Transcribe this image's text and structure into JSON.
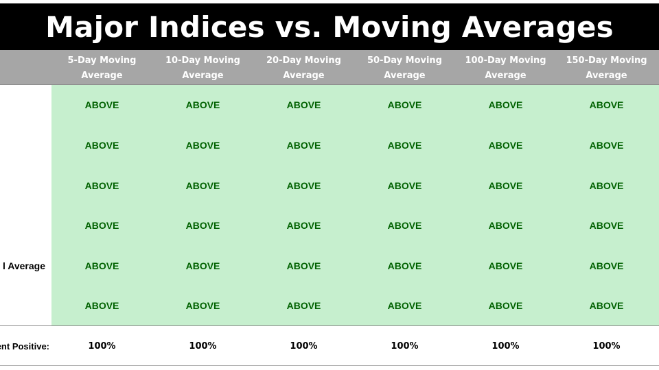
{
  "title": "Major Indices vs. Moving Averages",
  "columns": [
    {
      "line1": "5-Day Moving",
      "line2": "Average"
    },
    {
      "line1": "10-Day Moving",
      "line2": "Average"
    },
    {
      "line1": "20-Day Moving",
      "line2": "Average"
    },
    {
      "line1": "50-Day Moving",
      "line2": "Average"
    },
    {
      "line1": "100-Day Moving",
      "line2": "Average"
    },
    {
      "line1": "150-Day Moving",
      "line2": "Average"
    }
  ],
  "rows": [
    {
      "label": "",
      "cells": [
        "ABOVE",
        "ABOVE",
        "ABOVE",
        "ABOVE",
        "ABOVE",
        "ABOVE"
      ]
    },
    {
      "label": "",
      "cells": [
        "ABOVE",
        "ABOVE",
        "ABOVE",
        "ABOVE",
        "ABOVE",
        "ABOVE"
      ]
    },
    {
      "label": "",
      "cells": [
        "ABOVE",
        "ABOVE",
        "ABOVE",
        "ABOVE",
        "ABOVE",
        "ABOVE"
      ]
    },
    {
      "label": "",
      "cells": [
        "ABOVE",
        "ABOVE",
        "ABOVE",
        "ABOVE",
        "ABOVE",
        "ABOVE"
      ]
    },
    {
      "label": "l Average",
      "cells": [
        "ABOVE",
        "ABOVE",
        "ABOVE",
        "ABOVE",
        "ABOVE",
        "ABOVE"
      ]
    },
    {
      "label": "",
      "cells": [
        "ABOVE",
        "ABOVE",
        "ABOVE",
        "ABOVE",
        "ABOVE",
        "ABOVE"
      ]
    }
  ],
  "footer": {
    "label": "ent Positive:",
    "values": [
      "100%",
      "100%",
      "100%",
      "100%",
      "100%",
      "100%"
    ]
  },
  "colors": {
    "title_bg": "#000000",
    "header_bg": "#a6a6a6",
    "above_bg": "#c6efce",
    "above_text": "#006100"
  }
}
